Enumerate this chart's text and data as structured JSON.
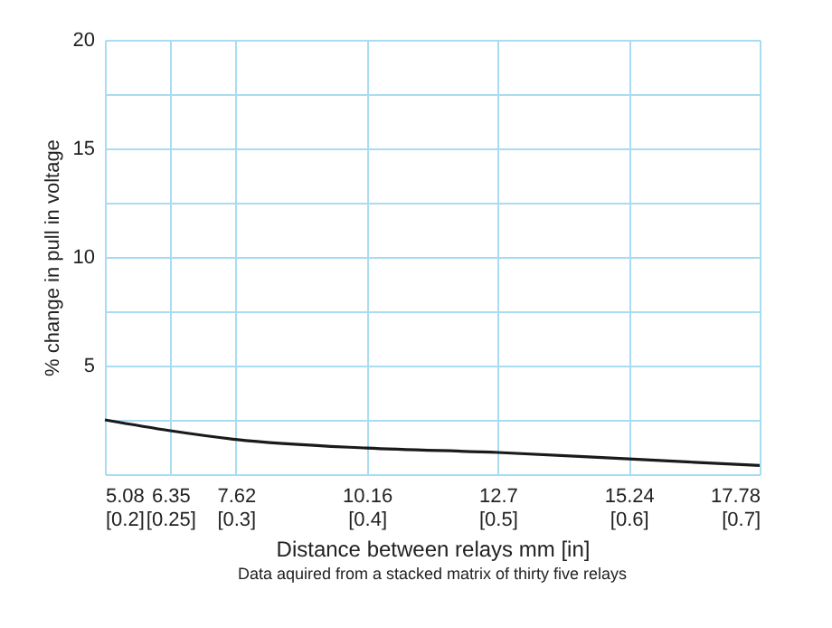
{
  "chart_data": {
    "type": "line",
    "xlabel": "Distance between relays     mm [in]",
    "ylabel": "% change in pull in voltage",
    "annotations": [
      "Data aquired from a stacked matrix of thirty five relays"
    ],
    "x": [
      5.08,
      6.35,
      7.62,
      10.16,
      12.7,
      15.24,
      17.78
    ],
    "series": [
      {
        "color": "#1a1a1a",
        "values": [
          2.5,
          2.0,
          1.6,
          1.2,
          1.0,
          0.7,
          0.4
        ]
      }
    ],
    "xlim": [
      5.08,
      17.78
    ],
    "xticks": [
      5.08,
      6.35,
      7.62,
      10.16,
      12.7,
      15.24,
      17.78
    ],
    "x2lim": [
      0.2,
      0.7
    ],
    "x2ticks": [
      {
        "value": 0.2,
        "label": "[0.2]"
      },
      {
        "value": 0.25,
        "label": "[0.25]"
      },
      {
        "value": 0.3,
        "label": "[0.3]"
      },
      {
        "value": 0.4,
        "label": "[0.4]"
      },
      {
        "value": 0.5,
        "label": "[0.5]"
      },
      {
        "value": 0.6,
        "label": "[0.6]"
      },
      {
        "value": 0.7,
        "label": "[0.7]"
      }
    ],
    "ylim": [
      0,
      20
    ],
    "yticks": [
      {
        "value": 0,
        "label": null
      },
      {
        "value": 2.5,
        "label": null
      },
      5,
      {
        "value": 7.5,
        "label": null
      },
      10,
      {
        "value": 12.5,
        "label": null
      },
      15,
      {
        "value": 17.5,
        "label": null
      },
      20
    ],
    "grid": true,
    "marker": "none",
    "line_style": "solid"
  }
}
